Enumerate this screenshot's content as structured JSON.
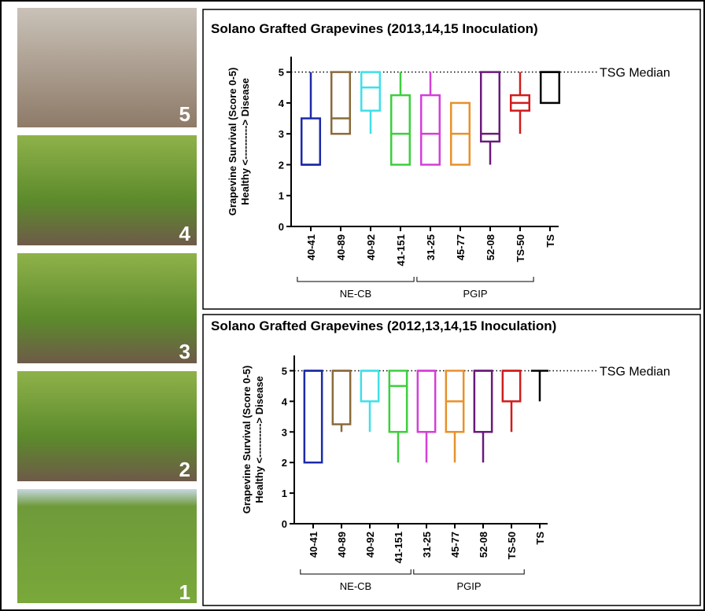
{
  "photos": {
    "labels": [
      "5",
      "4",
      "3",
      "2",
      "1"
    ]
  },
  "chart_data": [
    {
      "type": "box",
      "title": "Solano Grafted Grapevines (2013,14,15 Inoculation)",
      "y_label": [
        "Grapevine Survival (Score 0-5)",
        "Healthy <----------> Disease"
      ],
      "categories": [
        "40-41",
        "40-89",
        "40-92",
        "41-151",
        "31-25",
        "45-77",
        "52-08",
        "TS-50",
        "TS"
      ],
      "colors": [
        "#1c2aa8",
        "#8b6a3a",
        "#3fe0e8",
        "#3ccf3c",
        "#d43fd8",
        "#e8902a",
        "#6a1a7a",
        "#d01c1c",
        "#000000"
      ],
      "min": [
        2,
        3,
        3,
        2,
        2,
        2,
        2,
        3,
        4
      ],
      "q1": [
        2,
        3,
        3.75,
        2,
        2,
        2,
        2.75,
        3.75,
        4
      ],
      "median": [
        2,
        3.5,
        4.5,
        3,
        3,
        3,
        3,
        4,
        5
      ],
      "q3": [
        3.5,
        5,
        5,
        4.25,
        4.25,
        4,
        5,
        4.25,
        5
      ],
      "max": [
        5,
        5,
        5,
        5,
        5,
        4,
        5,
        5,
        5
      ],
      "ylim": [
        0,
        5.5
      ],
      "yticks": [
        0,
        1,
        2,
        3,
        4,
        5
      ],
      "reference_line": {
        "value": 5,
        "label": "TSG Median"
      },
      "groups": [
        {
          "name": "NE-CB",
          "categories": [
            "40-41",
            "40-89",
            "40-92",
            "41-151"
          ]
        },
        {
          "name": "PGIP",
          "categories": [
            "31-25",
            "45-77",
            "52-08",
            "TS-50"
          ]
        }
      ]
    },
    {
      "type": "box",
      "title": "Solano Grafted Grapevines (2012,13,14,15 Inoculation)",
      "y_label": [
        "Grapevine Survival (Score 0-5)",
        "Healthy <----------> Disease"
      ],
      "categories": [
        "40-41",
        "40-89",
        "40-92",
        "41-151",
        "31-25",
        "45-77",
        "52-08",
        "TS-50",
        "TS"
      ],
      "colors": [
        "#1c2aa8",
        "#8b6a3a",
        "#3fe0e8",
        "#3ccf3c",
        "#d43fd8",
        "#e8902a",
        "#6a1a7a",
        "#d01c1c",
        "#000000"
      ],
      "min": [
        2,
        3,
        3,
        2,
        2,
        2,
        2,
        3,
        4
      ],
      "q1": [
        2,
        3.25,
        4,
        3,
        3,
        3,
        3,
        4,
        5
      ],
      "median": [
        5,
        5,
        5,
        4.5,
        5,
        4,
        5,
        5,
        5
      ],
      "q3": [
        5,
        5,
        5,
        5,
        5,
        5,
        5,
        5,
        5
      ],
      "max": [
        5,
        5,
        5,
        5,
        5,
        5,
        5,
        5,
        5
      ],
      "ylim": [
        0,
        5.5
      ],
      "yticks": [
        0,
        1,
        2,
        3,
        4,
        5
      ],
      "reference_line": {
        "value": 5,
        "label": "TSG Median"
      },
      "groups": [
        {
          "name": "NE-CB",
          "categories": [
            "40-41",
            "40-89",
            "40-92",
            "41-151"
          ]
        },
        {
          "name": "PGIP",
          "categories": [
            "31-25",
            "45-77",
            "52-08",
            "TS-50"
          ]
        }
      ]
    }
  ]
}
